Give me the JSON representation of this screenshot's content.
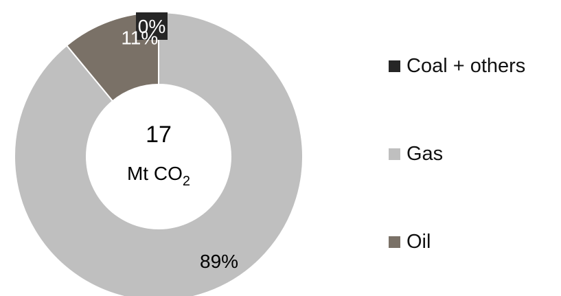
{
  "chart_data": {
    "type": "pie",
    "donut": true,
    "slices": [
      {
        "name": "Coal + others",
        "value": 0,
        "label": "0%",
        "color": "#262626"
      },
      {
        "name": "Gas",
        "value": 89,
        "label": "89%",
        "color": "#bfbfbf"
      },
      {
        "name": "Oil",
        "value": 11,
        "label": "11%",
        "color": "#7a7167"
      }
    ],
    "center": {
      "total": "17",
      "unit": "Mt CO",
      "unit_subscript": "2"
    },
    "legend_position": "right"
  }
}
